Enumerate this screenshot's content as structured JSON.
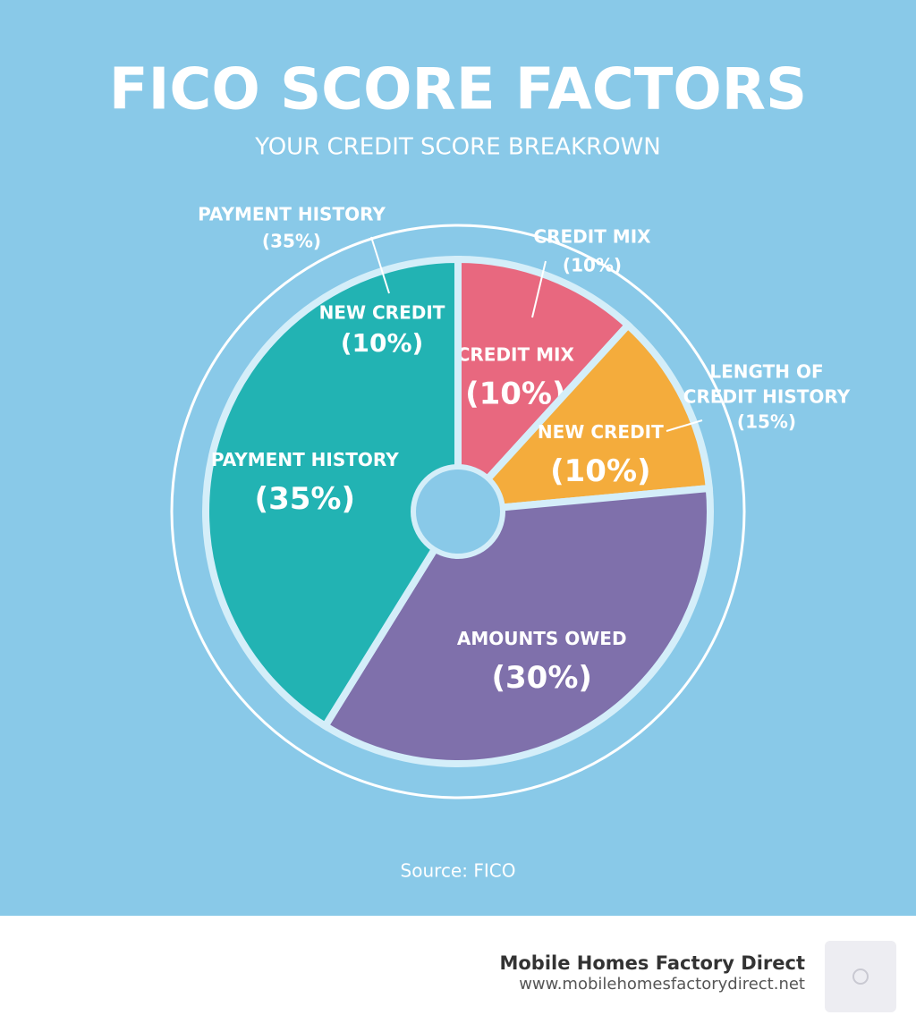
{
  "chart_data": {
    "type": "pie",
    "title": "FICO SCORE FACTORS",
    "subtitle": "YOUR CREDIT SCORE BREAKROWN",
    "categories": [
      "CREDIT MIX",
      "NEW CREDIT",
      "AMOUNTS OWED",
      "PAYMENT HISTORY"
    ],
    "values": [
      10,
      10,
      30,
      35
    ],
    "value_labels": [
      "(10%)",
      "(10%)",
      "(30%)",
      "(35%)"
    ],
    "colors": [
      "#e8687f",
      "#f4ac3c",
      "#7f70ab",
      "#22b3b3"
    ],
    "annotations": [
      [
        "PAYMENT HISTORY",
        "(35%)"
      ],
      [
        "CREDIT MIX",
        "(10%)"
      ],
      [
        "LENGTH OF",
        "CREDIT HISTORY",
        "(15%)"
      ],
      [
        "NEW CREDIT",
        "(10%)"
      ]
    ],
    "source": "Source: FICO"
  },
  "footer": {
    "brand": "Mobile Homes Factory Direct",
    "url": "www.mobilehomesfactorydirect.net"
  }
}
